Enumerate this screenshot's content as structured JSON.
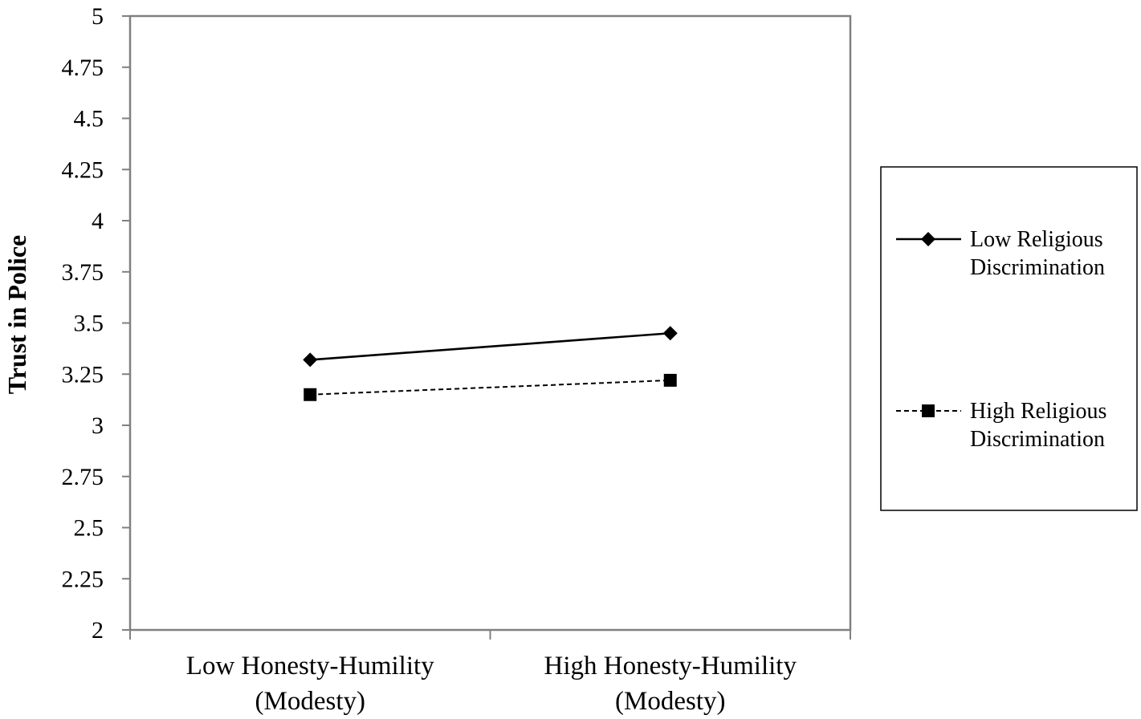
{
  "chart_data": {
    "type": "line",
    "title": "",
    "xlabel": "",
    "ylabel": "Trust in Police",
    "ylim": [
      2,
      5
    ],
    "yticks": [
      "2",
      "2.25",
      "2.5",
      "2.75",
      "3",
      "3.25",
      "3.5",
      "3.75",
      "4",
      "4.25",
      "4.5",
      "4.75",
      "5"
    ],
    "categories": [
      [
        "Low Honesty-Humility",
        "(Modesty)"
      ],
      [
        "High Honesty-Humility",
        "(Modesty)"
      ]
    ],
    "series": [
      {
        "name_lines": [
          "Low Religious",
          "Discrimination"
        ],
        "values": [
          3.32,
          3.45
        ],
        "marker": "diamond",
        "line_style": "solid",
        "color": "#000000"
      },
      {
        "name_lines": [
          "High Religious",
          "Discrimination"
        ],
        "values": [
          3.15,
          3.22
        ],
        "marker": "square",
        "line_style": "dashed",
        "color": "#000000"
      }
    ],
    "grid": false,
    "legend_position": "right"
  }
}
